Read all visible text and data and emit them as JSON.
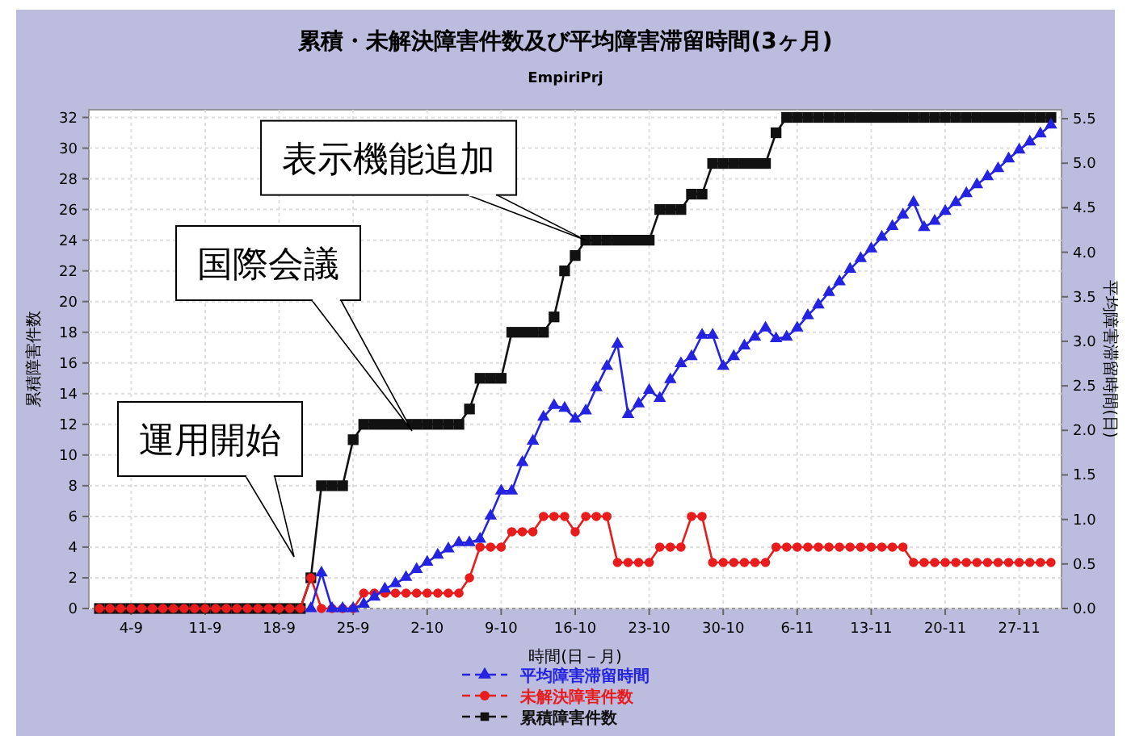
{
  "chart_data": {
    "type": "line",
    "title": "累積・未解決障害件数及び平均障害滞留時間(3ヶ月)",
    "subtitle": "EmpiriPrj",
    "xlabel": "時間(日－月)",
    "ylabel": "累積障害件数",
    "y2label": "平均障害滞留時間(日)",
    "x": [
      "--09-01",
      "--09-02",
      "--09-03",
      "--09-04",
      "--09-05",
      "--09-06",
      "--09-07",
      "--09-08",
      "--09-09",
      "--09-10",
      "--09-11",
      "--09-12",
      "--09-13",
      "--09-14",
      "--09-15",
      "--09-16",
      "--09-17",
      "--09-18",
      "--09-19",
      "--09-20",
      "--09-21",
      "--09-22",
      "--09-23",
      "--09-24",
      "--09-25",
      "--09-26",
      "--09-27",
      "--09-28",
      "--09-29",
      "--09-30",
      "--10-01",
      "--10-02",
      "--10-03",
      "--10-04",
      "--10-05",
      "--10-06",
      "--10-07",
      "--10-08",
      "--10-09",
      "--10-10",
      "--10-11",
      "--10-12",
      "--10-13",
      "--10-14",
      "--10-15",
      "--10-16",
      "--10-17",
      "--10-18",
      "--10-19",
      "--10-20",
      "--10-21",
      "--10-22",
      "--10-23",
      "--10-24",
      "--10-25",
      "--10-26",
      "--10-27",
      "--10-28",
      "--10-29",
      "--10-30",
      "--10-31",
      "--11-01",
      "--11-02",
      "--11-03",
      "--11-04",
      "--11-05",
      "--11-06",
      "--11-07",
      "--11-08",
      "--11-09",
      "--11-10",
      "--11-11",
      "--11-12",
      "--11-13",
      "--11-14",
      "--11-15",
      "--11-16",
      "--11-17",
      "--11-18",
      "--11-19",
      "--11-20",
      "--11-21",
      "--11-22",
      "--11-23",
      "--11-24",
      "--11-25",
      "--11-26",
      "--11-27",
      "--11-28",
      "--11-29",
      "--11-30"
    ],
    "series": [
      {
        "name": "平均障害滞留時間",
        "color": "#2323e0",
        "axis": "y2",
        "marker": "triangle",
        "values": [
          null,
          null,
          null,
          null,
          null,
          null,
          null,
          null,
          null,
          null,
          null,
          null,
          null,
          null,
          null,
          null,
          null,
          null,
          null,
          null,
          0,
          0.4,
          0,
          0,
          0,
          0.05,
          0.13,
          0.22,
          0.28,
          0.35,
          0.44,
          0.52,
          0.6,
          0.67,
          0.74,
          0.74,
          0.78,
          1.04,
          1.32,
          1.32,
          1.64,
          1.88,
          2.15,
          2.28,
          2.25,
          2.13,
          2.22,
          2.48,
          2.72,
          2.97,
          2.18,
          2.3,
          2.45,
          2.36,
          2.57,
          2.75,
          2.83,
          3.07,
          3.07,
          2.72,
          2.83,
          2.95,
          3.05,
          3.15,
          3.03,
          3.05,
          3.15,
          3.29,
          3.41,
          3.55,
          3.67,
          3.81,
          3.93,
          4.04,
          4.17,
          4.29,
          4.42,
          4.56,
          4.28,
          4.35,
          4.46,
          4.56,
          4.66,
          4.76,
          4.85,
          4.94,
          5.05,
          5.15,
          5.24,
          5.33,
          5.43
        ]
      },
      {
        "name": "未解決障害件数",
        "color": "#e81c1c",
        "marker": "circle",
        "values": [
          0,
          0,
          0,
          0,
          0,
          0,
          0,
          0,
          0,
          0,
          0,
          0,
          0,
          0,
          0,
          0,
          0,
          0,
          0,
          0,
          2,
          0,
          0,
          0,
          0,
          1,
          1,
          1,
          1,
          1,
          1,
          1,
          1,
          1,
          1,
          2,
          4,
          4,
          4,
          5,
          5,
          5,
          6,
          6,
          6,
          5,
          6,
          6,
          6,
          3,
          3,
          3,
          3,
          4,
          4,
          4,
          6,
          6,
          3,
          3,
          3,
          3,
          3,
          3,
          4,
          4,
          4,
          4,
          4,
          4,
          4,
          4,
          4,
          4,
          4,
          4,
          4,
          3,
          3,
          3,
          3,
          3,
          3,
          3,
          3,
          3,
          3,
          3,
          3,
          3,
          3
        ]
      },
      {
        "name": "累積障害件数",
        "color": "#111111",
        "marker": "square",
        "values": [
          0,
          0,
          0,
          0,
          0,
          0,
          0,
          0,
          0,
          0,
          0,
          0,
          0,
          0,
          0,
          0,
          0,
          0,
          0,
          0,
          2,
          8,
          8,
          8,
          11,
          12,
          12,
          12,
          12,
          12,
          12,
          12,
          12,
          12,
          12,
          13,
          15,
          15,
          15,
          18,
          18,
          18,
          18,
          19,
          22,
          23,
          24,
          24,
          24,
          24,
          24,
          24,
          24,
          26,
          26,
          26,
          27,
          27,
          29,
          29,
          29,
          29,
          29,
          29,
          31,
          32,
          32,
          32,
          32,
          32,
          32,
          32,
          32,
          32,
          32,
          32,
          32,
          32,
          32,
          32,
          32,
          32,
          32,
          32,
          32,
          32,
          32,
          32,
          32,
          32,
          32
        ]
      }
    ],
    "xlim": [
      "--08-31",
      "--12-01"
    ],
    "xticks": [
      {
        "value": "--09-04",
        "label": "4-9"
      },
      {
        "value": "--09-11",
        "label": "11-9"
      },
      {
        "value": "--09-18",
        "label": "18-9"
      },
      {
        "value": "--09-25",
        "label": "25-9"
      },
      {
        "value": "--10-02",
        "label": "2-10"
      },
      {
        "value": "--10-09",
        "label": "9-10"
      },
      {
        "value": "--10-16",
        "label": "16-10"
      },
      {
        "value": "--10-23",
        "label": "23-10"
      },
      {
        "value": "--10-30",
        "label": "30-10"
      },
      {
        "value": "--11-06",
        "label": "6-11"
      },
      {
        "value": "--11-13",
        "label": "13-11"
      },
      {
        "value": "--11-20",
        "label": "20-11"
      },
      {
        "value": "--11-27",
        "label": "27-11"
      }
    ],
    "ylim": [
      0,
      32.5
    ],
    "yticks": [
      0,
      2,
      4,
      6,
      8,
      10,
      12,
      14,
      16,
      18,
      20,
      22,
      24,
      26,
      28,
      30,
      32
    ],
    "y2lim": [
      0,
      5.6
    ],
    "y2ticks": [
      {
        "value": 0,
        "label": "0.0"
      },
      {
        "value": 0.5,
        "label": "0.5"
      },
      {
        "value": 1,
        "label": "1.0"
      },
      {
        "value": 1.5,
        "label": "1.5"
      },
      {
        "value": 2,
        "label": "2.0"
      },
      {
        "value": 2.5,
        "label": "2.5"
      },
      {
        "value": 3,
        "label": "3.0"
      },
      {
        "value": 3.5,
        "label": "3.5"
      },
      {
        "value": 4,
        "label": "4.0"
      },
      {
        "value": 4.5,
        "label": "4.5"
      },
      {
        "value": 5,
        "label": "5.0"
      },
      {
        "value": 5.5,
        "label": "5.5"
      }
    ],
    "grid": true,
    "legend": "bottom",
    "line_style": "solid",
    "annotations": [
      "運用開始",
      "国際会議",
      {
        "text": "表示機能追加",
        "x": "--10-17",
        "y": 24
      }
    ]
  }
}
